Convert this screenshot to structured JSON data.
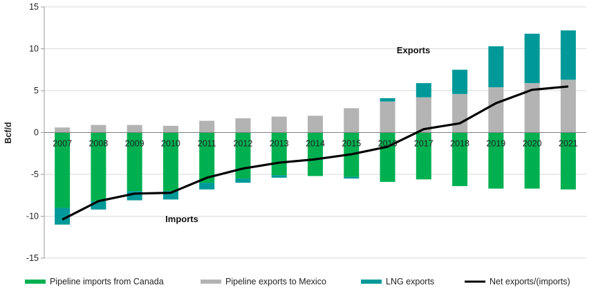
{
  "chart_data": {
    "type": "bar",
    "ylabel": "Bcf/d",
    "ylim": [
      -15,
      15
    ],
    "yticks": [
      "15",
      "10",
      "5",
      "0",
      "-5",
      "-10",
      "-15"
    ],
    "categories": [
      "2007",
      "2008",
      "2009",
      "2010",
      "2011",
      "2012",
      "2013",
      "2014",
      "2015",
      "2016",
      "2017",
      "2018",
      "2019",
      "2020",
      "2021"
    ],
    "series": [
      {
        "name": "Pipeline imports from Canada",
        "color": "#00b050",
        "values": [
          -9.0,
          -8.2,
          -7.0,
          -7.0,
          -6.0,
          -5.5,
          -5.1,
          -5.2,
          -5.3,
          -5.9,
          -5.6,
          -6.4,
          -6.7,
          -6.7,
          -6.8
        ]
      },
      {
        "name": "Pipeline exports to Mexico",
        "color": "#b3b3b3",
        "values": [
          0.6,
          0.9,
          0.9,
          0.8,
          1.4,
          1.7,
          1.9,
          2.0,
          2.9,
          3.7,
          4.2,
          4.6,
          5.4,
          5.9,
          6.3
        ]
      },
      {
        "name": "LNG exports",
        "color": "#009999",
        "values": [
          -2.0,
          -1.0,
          -1.1,
          -1.0,
          -0.8,
          -0.5,
          -0.3,
          0.0,
          -0.2,
          0.4,
          1.7,
          2.9,
          4.9,
          5.9,
          5.9
        ]
      },
      {
        "name": "Net exports/(imports)",
        "color": "#000000",
        "type": "line",
        "values": [
          -10.4,
          -8.2,
          -7.3,
          -7.2,
          -5.4,
          -4.3,
          -3.6,
          -3.2,
          -2.6,
          -1.7,
          0.4,
          1.1,
          3.5,
          5.1,
          5.5
        ]
      }
    ],
    "annotations": [
      "Exports",
      "Imports"
    ],
    "grid": true,
    "legend": "bottom"
  }
}
